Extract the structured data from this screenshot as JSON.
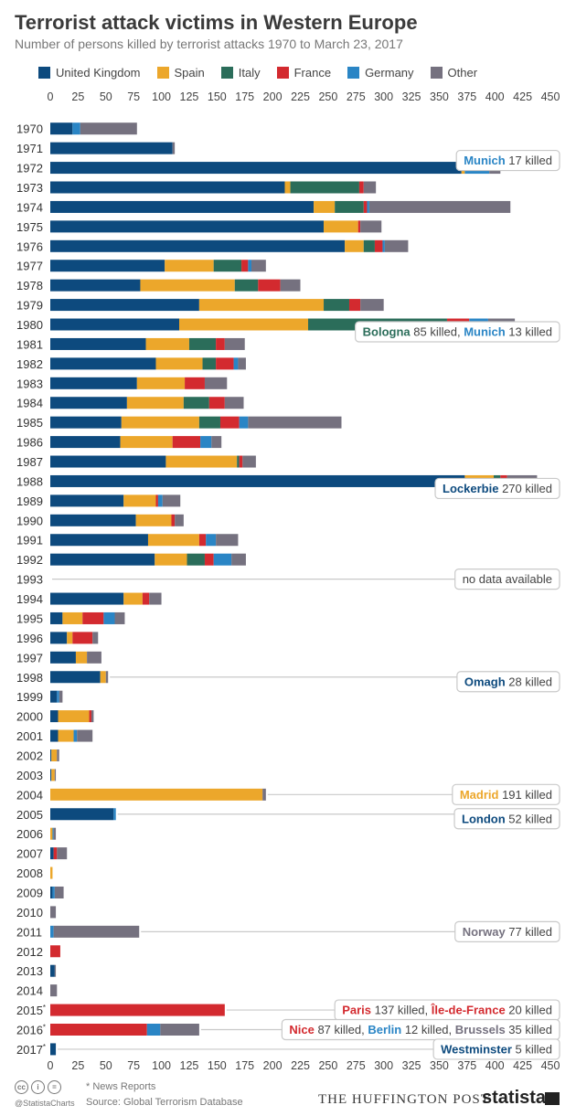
{
  "header": {
    "title": "Terrorist attack victims in Western Europe",
    "subtitle": "Number of persons killed by terrorist attacks 1970 to March 23, 2017"
  },
  "legend": [
    {
      "name": "United Kingdom",
      "color": "#0d4a7e"
    },
    {
      "name": "Spain",
      "color": "#eca72b"
    },
    {
      "name": "Italy",
      "color": "#2b6d5a"
    },
    {
      "name": "France",
      "color": "#d32a2f"
    },
    {
      "name": "Germany",
      "color": "#2a85c5"
    },
    {
      "name": "Other",
      "color": "#75717f"
    }
  ],
  "chart_data": {
    "type": "bar",
    "orientation": "horizontal",
    "stacked": true,
    "title": "Terrorist attack victims in Western Europe",
    "xlim": [
      0,
      450
    ],
    "x_ticks": [
      "0",
      "25",
      "50",
      "75",
      "100",
      "125",
      "150",
      "175",
      "200",
      "225",
      "250",
      "275",
      "300",
      "325",
      "350",
      "375",
      "400",
      "425",
      "450"
    ],
    "grid": false,
    "legend_position": "top",
    "categories": [
      "1970",
      "1971",
      "1972",
      "1973",
      "1974",
      "1975",
      "1976",
      "1977",
      "1978",
      "1979",
      "1980",
      "1981",
      "1982",
      "1983",
      "1984",
      "1985",
      "1986",
      "1987",
      "1988",
      "1989",
      "1990",
      "1991",
      "1992",
      "1993",
      "1994",
      "1995",
      "1996",
      "1997",
      "1998",
      "1999",
      "2000",
      "2001",
      "2002",
      "2003",
      "2004",
      "2005",
      "2006",
      "2007",
      "2008",
      "2009",
      "2010",
      "2011",
      "2012",
      "2013",
      "2014",
      "2015*",
      "2016*",
      "2017*"
    ],
    "series": [
      {
        "name": "United Kingdom",
        "color": "#0d4a7e",
        "values": [
          20,
          110,
          370,
          211,
          237,
          246,
          265,
          103,
          81,
          134,
          116,
          86,
          95,
          78,
          69,
          64,
          63,
          104,
          373,
          66,
          77,
          88,
          94,
          0,
          66,
          11,
          15,
          23,
          45,
          6,
          7,
          7,
          1,
          1,
          0,
          57,
          0,
          3,
          0,
          2,
          0,
          0,
          0,
          4,
          0,
          0,
          0,
          5
        ]
      },
      {
        "name": "Spain",
        "color": "#eca72b",
        "values": [
          0,
          0,
          3,
          5,
          19,
          31,
          17,
          44,
          85,
          112,
          116,
          39,
          42,
          43,
          51,
          70,
          47,
          64,
          26,
          29,
          32,
          46,
          29,
          0,
          17,
          18,
          5,
          10,
          5,
          0,
          28,
          14,
          5,
          3,
          191,
          0,
          2,
          0,
          2,
          0,
          0,
          0,
          0,
          0,
          0,
          0,
          0,
          0
        ]
      },
      {
        "name": "Italy",
        "color": "#2b6d5a",
        "values": [
          0,
          0,
          0,
          62,
          26,
          0,
          10,
          25,
          21,
          23,
          125,
          24,
          12,
          0,
          23,
          19,
          0,
          2,
          6,
          0,
          0,
          0,
          16,
          0,
          0,
          0,
          0,
          0,
          0,
          0,
          0,
          0,
          0,
          0,
          0,
          0,
          0,
          0,
          0,
          0,
          0,
          0,
          0,
          0,
          0,
          0,
          0,
          0
        ]
      },
      {
        "name": "France",
        "color": "#d32a2f",
        "values": [
          0,
          0,
          0,
          4,
          3,
          2,
          7,
          6,
          20,
          10,
          20,
          8,
          16,
          18,
          14,
          17,
          25,
          3,
          6,
          2,
          3,
          6,
          8,
          0,
          6,
          19,
          18,
          0,
          0,
          0,
          2,
          0,
          0,
          0,
          0,
          0,
          0,
          3,
          0,
          0,
          0,
          0,
          9,
          0,
          0,
          157,
          87,
          0
        ]
      },
      {
        "name": "Germany",
        "color": "#2a85c5",
        "values": [
          7,
          0,
          22,
          0,
          2,
          0,
          2,
          3,
          0,
          0,
          17,
          0,
          4,
          0,
          0,
          8,
          10,
          0,
          0,
          4,
          0,
          9,
          16,
          0,
          0,
          10,
          0,
          0,
          0,
          2,
          0,
          3,
          0,
          0,
          0,
          2,
          1,
          0,
          0,
          2,
          0,
          3,
          0,
          0,
          0,
          0,
          12,
          0
        ]
      },
      {
        "name": "Other",
        "color": "#75717f",
        "values": [
          51,
          2,
          10,
          11,
          127,
          19,
          21,
          13,
          18,
          21,
          24,
          18,
          7,
          20,
          17,
          84,
          9,
          12,
          27,
          16,
          8,
          20,
          13,
          0,
          11,
          9,
          5,
          13,
          2,
          3,
          2,
          14,
          2,
          1,
          3,
          0,
          2,
          9,
          0,
          8,
          5,
          77,
          0,
          1,
          6,
          0,
          35,
          0
        ]
      }
    ],
    "annotations": [
      {
        "year": "1972",
        "parts": [
          {
            "text": "Munich",
            "bold": true,
            "color": "#2a85c5"
          },
          {
            "text": " 17 killed"
          }
        ]
      },
      {
        "year": "1980",
        "parts": [
          {
            "text": "Bologna",
            "bold": true,
            "color": "#2b6d5a"
          },
          {
            "text": " 85 killed, "
          },
          {
            "text": "Munich",
            "bold": true,
            "color": "#2a85c5"
          },
          {
            "text": " 13 killed"
          }
        ]
      },
      {
        "year": "1988",
        "parts": [
          {
            "text": "Lockerbie",
            "bold": true,
            "color": "#0d4a7e"
          },
          {
            "text": " 270 killed"
          }
        ]
      },
      {
        "year": "1993",
        "parts": [
          {
            "text": "no data available"
          }
        ]
      },
      {
        "year": "1998",
        "parts": [
          {
            "text": "Omagh",
            "bold": true,
            "color": "#0d4a7e"
          },
          {
            "text": " 28 killed"
          }
        ]
      },
      {
        "year": "2004",
        "parts": [
          {
            "text": "Madrid",
            "bold": true,
            "color": "#eca72b"
          },
          {
            "text": " 191 killed"
          }
        ]
      },
      {
        "year": "2005",
        "parts": [
          {
            "text": "London",
            "bold": true,
            "color": "#0d4a7e"
          },
          {
            "text": " 52 killed"
          }
        ]
      },
      {
        "year": "2011",
        "parts": [
          {
            "text": "Norway",
            "bold": true,
            "color": "#75717f"
          },
          {
            "text": " 77 killed"
          }
        ]
      },
      {
        "year": "2015*",
        "parts": [
          {
            "text": "Paris",
            "bold": true,
            "color": "#d32a2f"
          },
          {
            "text": " 137 killed, "
          },
          {
            "text": "Île-de-France",
            "bold": true,
            "color": "#d32a2f"
          },
          {
            "text": " 20 killed"
          }
        ]
      },
      {
        "year": "2016*",
        "parts": [
          {
            "text": "Nice",
            "bold": true,
            "color": "#d32a2f"
          },
          {
            "text": " 87 killed, "
          },
          {
            "text": "Berlin",
            "bold": true,
            "color": "#2a85c5"
          },
          {
            "text": " 12 killed, "
          },
          {
            "text": "Brussels",
            "bold": true,
            "color": "#75717f"
          },
          {
            "text": " 35 killed"
          }
        ]
      },
      {
        "year": "2017*",
        "parts": [
          {
            "text": "Westminster",
            "bold": true,
            "color": "#0d4a7e"
          },
          {
            "text": " 5 killed"
          }
        ]
      }
    ]
  },
  "footer": {
    "note": "* News Reports",
    "source": "Source: Global Terrorism Database",
    "handle": "@StatistaCharts",
    "publisher": "THE HUFFINGTON POST",
    "brand": "statista"
  }
}
